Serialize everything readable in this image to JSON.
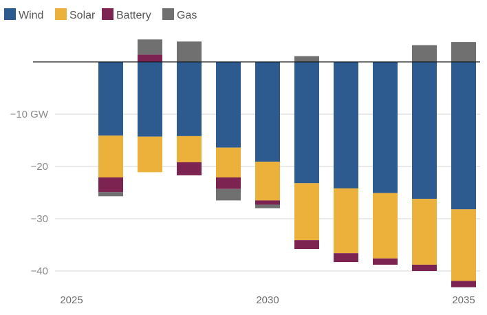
{
  "chart_data": {
    "type": "bar",
    "stacked": true,
    "title": "",
    "xlabel": "",
    "ylabel": "",
    "y_unit": "GW",
    "ylim": [
      -43,
      4.5
    ],
    "grid": true,
    "legend_position": "top-left",
    "x": [
      2026,
      2027,
      2028,
      2029,
      2030,
      2031,
      2032,
      2033,
      2034,
      2035
    ],
    "x_ticks": [
      2025,
      2030,
      2035
    ],
    "x_tick_labels": [
      "2025",
      "2030",
      "2035"
    ],
    "y_ticks": [
      -10,
      -20,
      -30,
      -40
    ],
    "y_tick_labels": [
      "−10 GW",
      "−20",
      "−30",
      "−40"
    ],
    "series": [
      {
        "name": "Wind",
        "color": "#2e5b8f",
        "values": [
          -14.1,
          -14.3,
          -14.2,
          -16.4,
          -19.1,
          -23.2,
          -24.2,
          -25.1,
          -26.2,
          -28.2
        ]
      },
      {
        "name": "Solar",
        "color": "#ecb13a",
        "values": [
          -8.0,
          -6.8,
          -5.0,
          -5.7,
          -7.4,
          -10.9,
          -12.4,
          -12.5,
          -12.6,
          -13.7
        ]
      },
      {
        "name": "Battery",
        "color": "#7d2352",
        "values": [
          -2.8,
          1.4,
          -2.5,
          -2.2,
          -0.8,
          -1.7,
          -1.7,
          -1.2,
          -1.2,
          -1.2
        ]
      },
      {
        "name": "Gas",
        "color": "#707070",
        "values": [
          -0.8,
          2.9,
          3.9,
          -2.2,
          -0.7,
          1.1,
          0,
          0,
          3.2,
          3.8
        ]
      }
    ]
  }
}
